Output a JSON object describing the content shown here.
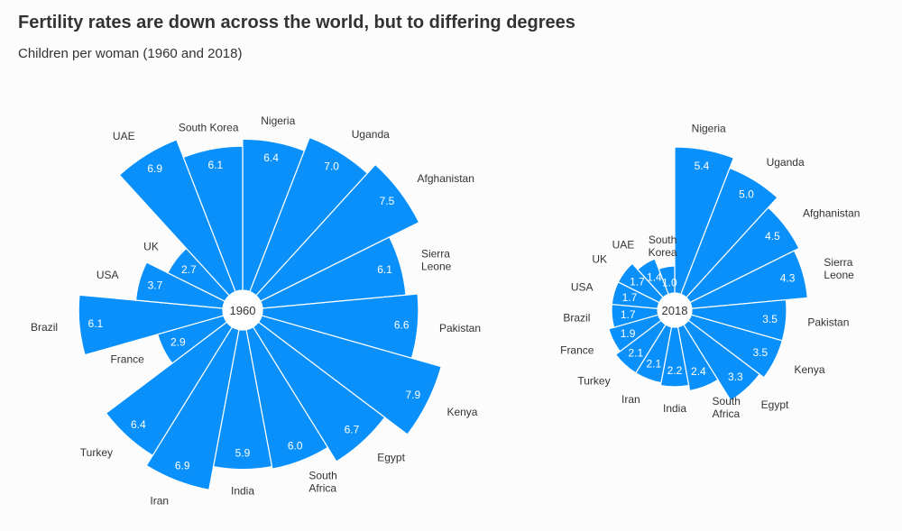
{
  "header": {
    "title": "Fertility rates are down across the world, but to differing degrees",
    "subtitle": "Children per woman (1960 and 2018)"
  },
  "colors": {
    "bar": "#0a90fb",
    "stroke": "#ffffff",
    "text": "#333333",
    "hub": "#ffffff"
  },
  "chart_data": [
    {
      "type": "polar-bar",
      "year": "1960",
      "categories": [
        "Nigeria",
        "Uganda",
        "Afghanistan",
        "Sierra Leone",
        "Pakistan",
        "Kenya",
        "Egypt",
        "South Africa",
        "India",
        "Iran",
        "Turkey",
        "France",
        "Brazil",
        "USA",
        "UK",
        "UAE",
        "South Korea"
      ],
      "values": [
        6.4,
        7.0,
        7.5,
        6.1,
        6.6,
        7.9,
        6.7,
        6.0,
        5.9,
        6.9,
        6.4,
        2.9,
        6.1,
        3.7,
        2.7,
        6.9,
        6.1
      ],
      "value_labels": [
        "6.4",
        "7.0",
        "7.5",
        "6.1",
        "6.6",
        "7.9",
        "6.7",
        "6.0",
        "5.9",
        "6.9",
        "6.4",
        "2.9",
        "6.1",
        "3.7",
        "2.7",
        "6.9",
        "6.1"
      ]
    },
    {
      "type": "polar-bar",
      "year": "2018",
      "categories": [
        "Nigeria",
        "Uganda",
        "Afghanistan",
        "Sierra Leone",
        "Pakistan",
        "Kenya",
        "Egypt",
        "South Africa",
        "India",
        "Iran",
        "Turkey",
        "France",
        "Brazil",
        "USA",
        "UK",
        "UAE",
        "South Korea"
      ],
      "values": [
        5.4,
        5.0,
        4.5,
        4.3,
        3.5,
        3.5,
        3.3,
        2.4,
        2.2,
        2.1,
        2.1,
        1.9,
        1.7,
        1.7,
        1.7,
        1.4,
        1.0
      ],
      "value_labels": [
        "5.4",
        "5.0",
        "4.5",
        "4.3",
        "3.5",
        "3.5",
        "3.3",
        "2.4",
        "2.2",
        "2.1",
        "2.1",
        "1.9",
        "1.7",
        "1.7",
        "1.7",
        "1.4",
        "1.0"
      ]
    }
  ]
}
